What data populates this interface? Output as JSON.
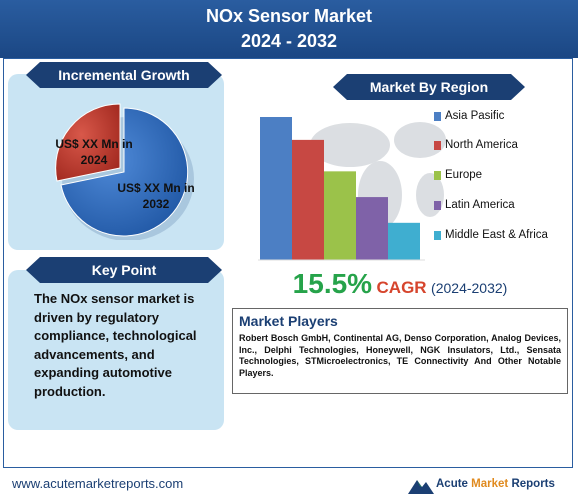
{
  "header": {
    "title_line1": "NOx Sensor Market",
    "title_line2": "2024 - 2032"
  },
  "incremental_growth": {
    "banner": "Incremental Growth",
    "label_2024": "US$ XX Mn in 2024",
    "label_2032": "US$ XX Mn in 2032",
    "color_2024": "#c0392b",
    "color_2032": "#2e6bc0"
  },
  "key_point": {
    "banner": "Key Point",
    "text": "The NOx sensor market is driven by regulatory compliance, technological advancements, and expanding automotive production."
  },
  "market_by_region": {
    "banner": "Market By Region"
  },
  "chart_data": {
    "type": "bar",
    "categories": [
      "Asia Pasific",
      "North America",
      "Europe",
      "Latin America",
      "Middle East & Africa"
    ],
    "values": [
      5,
      4.2,
      3.1,
      2.2,
      1.3
    ],
    "colors": [
      "#4c7fc4",
      "#c74843",
      "#9bc24a",
      "#7f62a8",
      "#3faed0"
    ],
    "title": "Market By Region",
    "xlabel": "",
    "ylabel": "",
    "grid": false,
    "legend": "right"
  },
  "cagr": {
    "value": "15.5%",
    "label": "CAGR",
    "period": "(2024-2032)"
  },
  "market_players": {
    "title": "Market Players",
    "text": "Robert Bosch GmbH, Continental AG, Denso Corporation, Analog Devices, Inc., Delphi Technologies, Honeywell, NGK Insulators, Ltd., Sensata Technologies, STMicroelectronics, TE Connectivity And Other Notable Players."
  },
  "footer": {
    "url": "www.acutemarketreports.com",
    "logo_word1": "Acute",
    "logo_word2": "Market",
    "logo_word3": "Reports"
  }
}
